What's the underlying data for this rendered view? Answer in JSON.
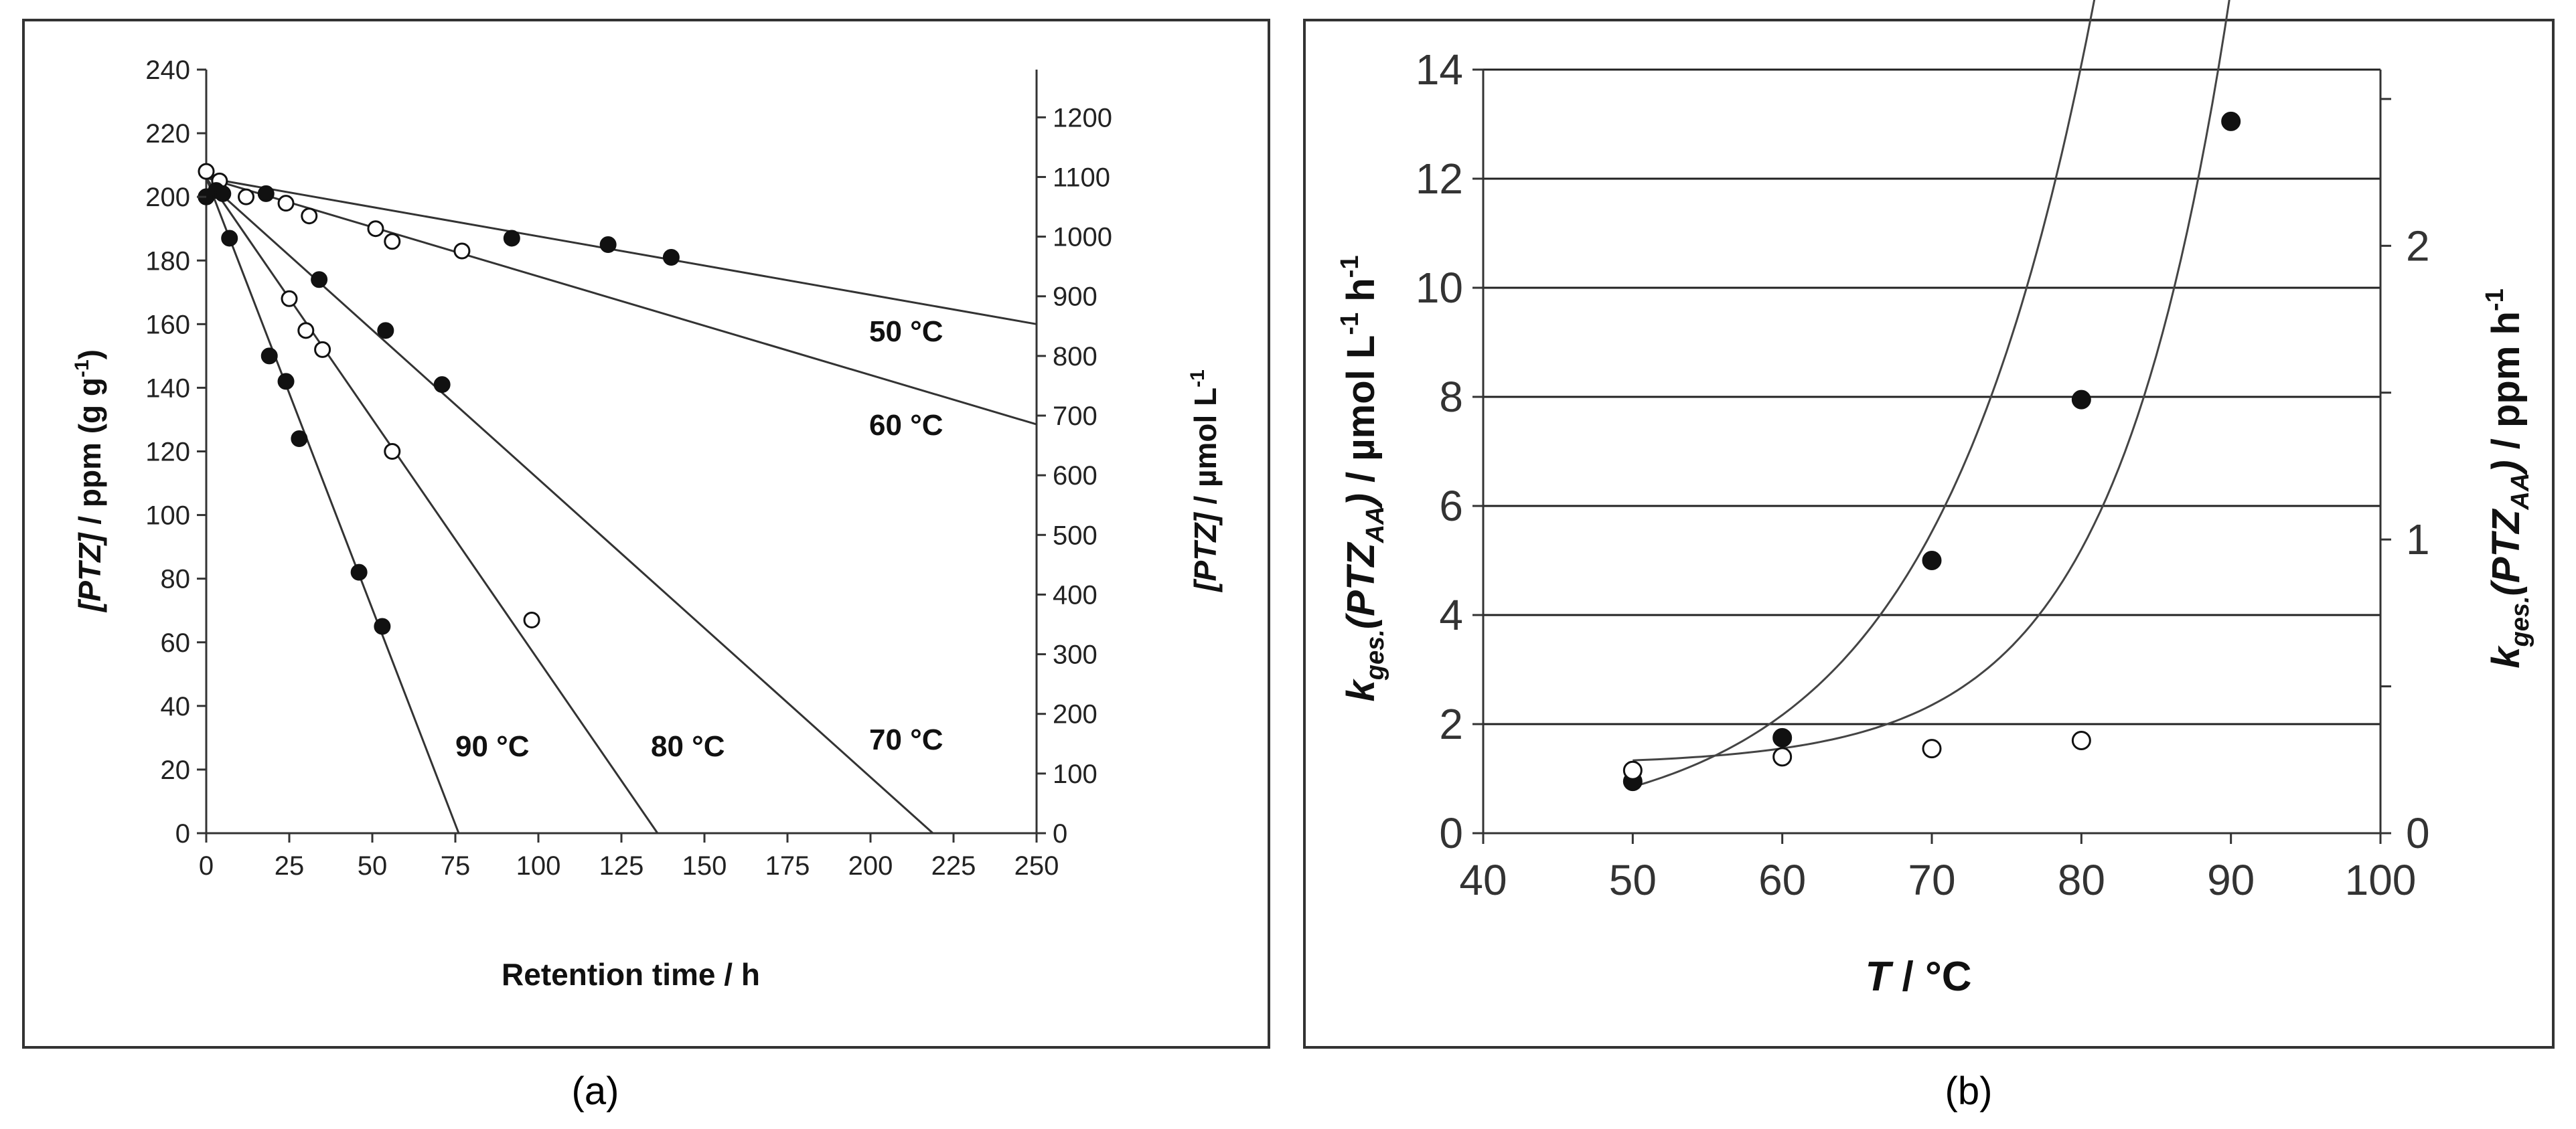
{
  "chart_data": [
    {
      "type": "scatter",
      "panel": "(a)",
      "xlabel": "Retention time / h",
      "ylabel_prefix": "[PTZ]",
      "ylabel_unit": " / ppm (g g",
      "ylabel_exp": "-1",
      "ylabel_close": ")",
      "y2label_prefix": "[PTZ]",
      "y2label_unit": " / µmol L",
      "y2label_exp": "-1",
      "xlim": [
        0,
        250
      ],
      "ylim": [
        0,
        240
      ],
      "y2lim": [
        0,
        1280
      ],
      "xticks": [
        "0",
        "25",
        "50",
        "75",
        "100",
        "125",
        "150",
        "175",
        "200",
        "225",
        "250"
      ],
      "yticks": [
        "0",
        "20",
        "40",
        "60",
        "80",
        "100",
        "120",
        "140",
        "160",
        "180",
        "200",
        "220",
        "240"
      ],
      "y2ticks": [
        "0",
        "100",
        "200",
        "300",
        "400",
        "500",
        "600",
        "700",
        "800",
        "900",
        "1000",
        "1100",
        "1200"
      ],
      "series": [
        {
          "name": "50 °C",
          "label": "50 °C",
          "marker": "filled",
          "x": [
            0,
            18,
            92,
            121,
            140
          ],
          "y": [
            200,
            201,
            187,
            185,
            181
          ],
          "fit": {
            "intercept": 206,
            "slope": -0.184
          }
        },
        {
          "name": "60 °C",
          "label": "60 °C",
          "marker": "open",
          "x": [
            0,
            4,
            12,
            24,
            31,
            51,
            56,
            77
          ],
          "y": [
            208,
            205,
            200,
            198,
            194,
            190,
            186,
            183
          ],
          "fit": {
            "intercept": 206,
            "slope": -0.31
          }
        },
        {
          "name": "70 °C",
          "label": "70 °C",
          "marker": "filled",
          "x": [
            0,
            3,
            5,
            34,
            54,
            71
          ],
          "y": [
            200,
            202,
            201,
            174,
            158,
            141
          ],
          "fit": {
            "intercept": 205,
            "slope": -0.937
          }
        },
        {
          "name": "80 °C",
          "label": "80 °C",
          "marker": "open",
          "x": [
            0,
            25,
            30,
            35,
            56,
            98
          ],
          "y": [
            200,
            168,
            158,
            152,
            120,
            67
          ],
          "fit": {
            "intercept": 206,
            "slope": -1.516
          }
        },
        {
          "name": "90 °C",
          "label": "90 °C",
          "marker": "filled",
          "x": [
            0,
            7,
            19,
            24,
            28,
            46,
            53
          ],
          "y": [
            200,
            187,
            150,
            142,
            124,
            82,
            65
          ],
          "fit": {
            "intercept": 206,
            "slope": -2.71
          }
        }
      ]
    },
    {
      "type": "scatter",
      "panel": "(b)",
      "xlabel_italic": "T",
      "xlabel_rest": " / °C",
      "ylabel_k": "k",
      "ylabel_sub": "ges.",
      "ylabel_mid": "(PTZ",
      "ylabel_sub2": "AA",
      "ylabel_close": ")",
      "ylabel_unit": " / µmol L",
      "ylabel_exp1": "-1",
      "ylabel_h": " h",
      "ylabel_exp2": "-1",
      "y2label_k": "k",
      "y2label_sub": "ges.",
      "y2label_mid": "(PTZ",
      "y2label_sub2": "AA",
      "y2label_close": ")",
      "y2label_unit": " / ppm  h",
      "y2label_exp": "-1",
      "xlim": [
        40,
        100
      ],
      "ylim": [
        0,
        14
      ],
      "y2lim": [
        0,
        2.6
      ],
      "xticks": [
        "40",
        "50",
        "60",
        "70",
        "80",
        "90",
        "100"
      ],
      "yticks": [
        "0",
        "2",
        "4",
        "6",
        "8",
        "10",
        "12",
        "14"
      ],
      "y2ticks": [
        "0",
        "1",
        "2"
      ],
      "series": [
        {
          "name": "filled",
          "marker": "filled",
          "x": [
            50,
            60,
            70,
            80,
            90
          ],
          "y": [
            0.95,
            1.75,
            5.0,
            7.95,
            13.05
          ],
          "fit_type": "exponential",
          "fit": {
            "a": 0.85,
            "b": 0.0936,
            "x0": 50,
            "x_end": 90
          }
        },
        {
          "name": "open",
          "marker": "open",
          "x": [
            50,
            60,
            70,
            80
          ],
          "y": [
            1.15,
            1.4,
            1.55,
            1.7
          ],
          "fit_type": "exponential",
          "fit": {
            "a": 1.25,
            "c": 0.085,
            "b": 0.128,
            "x0": 50,
            "x_end": 100
          }
        }
      ]
    }
  ]
}
